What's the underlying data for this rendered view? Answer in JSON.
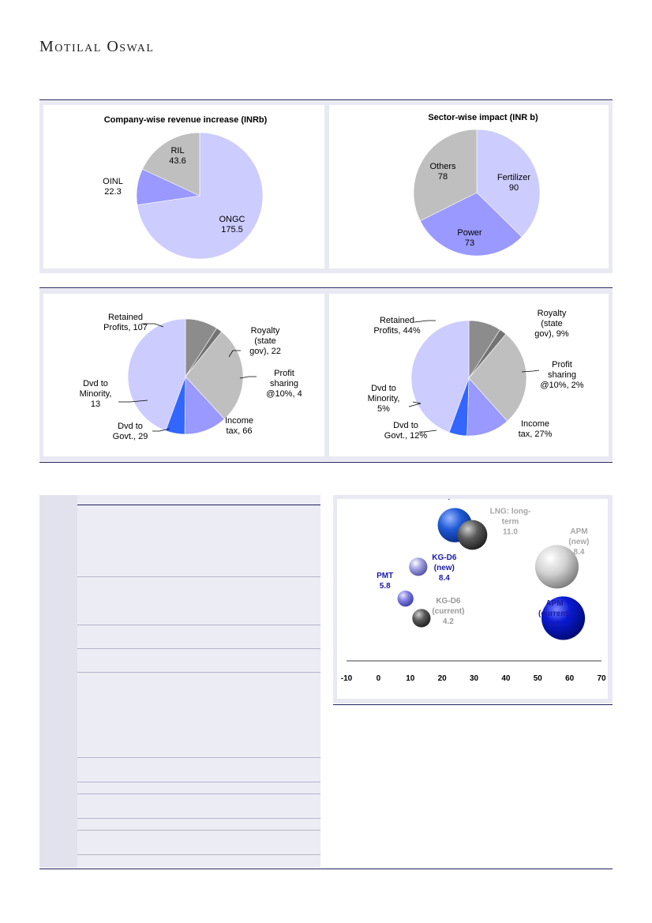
{
  "header": {
    "brand": "Motilal Oswal"
  },
  "colors": {
    "light_purple": "#ccccff",
    "mid_purple": "#9999ff",
    "blue": "#3366ff",
    "grey": "#bfbfbf",
    "dark_grey": "#8c8c8c",
    "navy_text": "#1a1aa6"
  },
  "chart_data": [
    {
      "type": "pie",
      "title": "Company-wise revenue increase (INRb)",
      "labels": [
        "ONGC",
        "OINL",
        "RIL"
      ],
      "values": [
        175.5,
        22.3,
        43.6
      ],
      "value_labels": [
        "175.5",
        "22.3",
        "43.6"
      ],
      "colors": [
        "#ccccff",
        "#9999ff",
        "#bfbfbf"
      ]
    },
    {
      "type": "pie",
      "title": "Sector-wise impact (INR b)",
      "labels": [
        "Fertilizer",
        "Power",
        "Others"
      ],
      "values": [
        90,
        73,
        78
      ],
      "value_labels": [
        "90",
        "73",
        "78"
      ],
      "colors": [
        "#ccccff",
        "#9999ff",
        "#bfbfbf"
      ]
    },
    {
      "type": "pie",
      "title": "",
      "labels": [
        "Royalty (state gov)",
        "Profit sharing @10%",
        "Income tax",
        "Dvd to Govt.",
        "Dvd to Minority",
        "Retained Profits"
      ],
      "values": [
        22,
        4,
        66,
        29,
        13,
        107
      ],
      "value_labels": [
        "Royalty\n(state\ngov),  22",
        "Profit\nsharing\n@10%,  4",
        "Income\ntax,  66",
        "Dvd to\nGovt.,  29",
        "Dvd to\nMinority,\n13",
        "Retained\nProfits,  107"
      ],
      "colors": [
        "#8c8c8c",
        "#737373",
        "#bfbfbf",
        "#9999ff",
        "#3366ff",
        "#ccccff"
      ]
    },
    {
      "type": "pie",
      "title": "",
      "labels": [
        "Royalty (state gov)",
        "Profit sharing @10%",
        "Income tax",
        "Dvd to Govt.",
        "Dvd to Minority",
        "Retained Profits"
      ],
      "values": [
        9,
        2,
        27,
        12,
        5,
        44
      ],
      "value_labels": [
        "Royalty\n(state\ngov), 9%",
        "Profit\nsharing\n@10%, 2%",
        "Income\ntax, 27%",
        "Dvd to\nGovt., 12%",
        "Dvd to\nMinority,\n5%",
        "Retained\nProfits, 44%"
      ],
      "colors": [
        "#8c8c8c",
        "#737373",
        "#bfbfbf",
        "#9999ff",
        "#3366ff",
        "#ccccff"
      ]
    },
    {
      "type": "scatter",
      "title": "",
      "xlabel": "",
      "ylabel": "",
      "xlim": [
        -10,
        70
      ],
      "xticks": [
        "-10",
        "0",
        "10",
        "20",
        "30",
        "40",
        "50",
        "60",
        "70"
      ],
      "points": [
        {
          "name": "LNG: Spot",
          "label_text": "LNG: Spot",
          "x": 24,
          "y": 11.8,
          "size": 15,
          "color": "#1f5ad6",
          "label_color": "#1a1aa6"
        },
        {
          "name": "LNG: long-term",
          "label_text": "LNG: long-\nterm\n11.0",
          "x": 29.5,
          "y": 11.0,
          "size": 13,
          "color": "#5a5a5a",
          "label_color": "#a6a6a6"
        },
        {
          "name": "KG-D6 (new)",
          "label_text": "KG-D6\n(new)\n8.4",
          "x": 12.5,
          "y": 8.4,
          "size": 8,
          "color": "#a0a0e0",
          "label_color": "#1a1aa6"
        },
        {
          "name": "PMT",
          "label_text": "PMT\n5.8",
          "x": 8.5,
          "y": 5.8,
          "size": 7,
          "color": "#8080e0",
          "label_color": "#1a1aa6"
        },
        {
          "name": "KG-D6 (current)",
          "label_text": "KG-D6\n(current)\n4.2",
          "x": 13.5,
          "y": 4.2,
          "size": 8,
          "color": "#555555",
          "label_color": "#999999"
        },
        {
          "name": "APM (new)",
          "label_text": "APM\n(new)\n8.4",
          "x": 56,
          "y": 8.4,
          "size": 19,
          "color": "#d0d0d0",
          "label_color": "#a6a6a6"
        },
        {
          "name": "APM (current)",
          "label_text": "APM\n(current)\n4.2",
          "x": 58,
          "y": 4.2,
          "size": 19,
          "color": "#0a1ad6",
          "label_color": "#1a1aa6"
        }
      ]
    }
  ]
}
